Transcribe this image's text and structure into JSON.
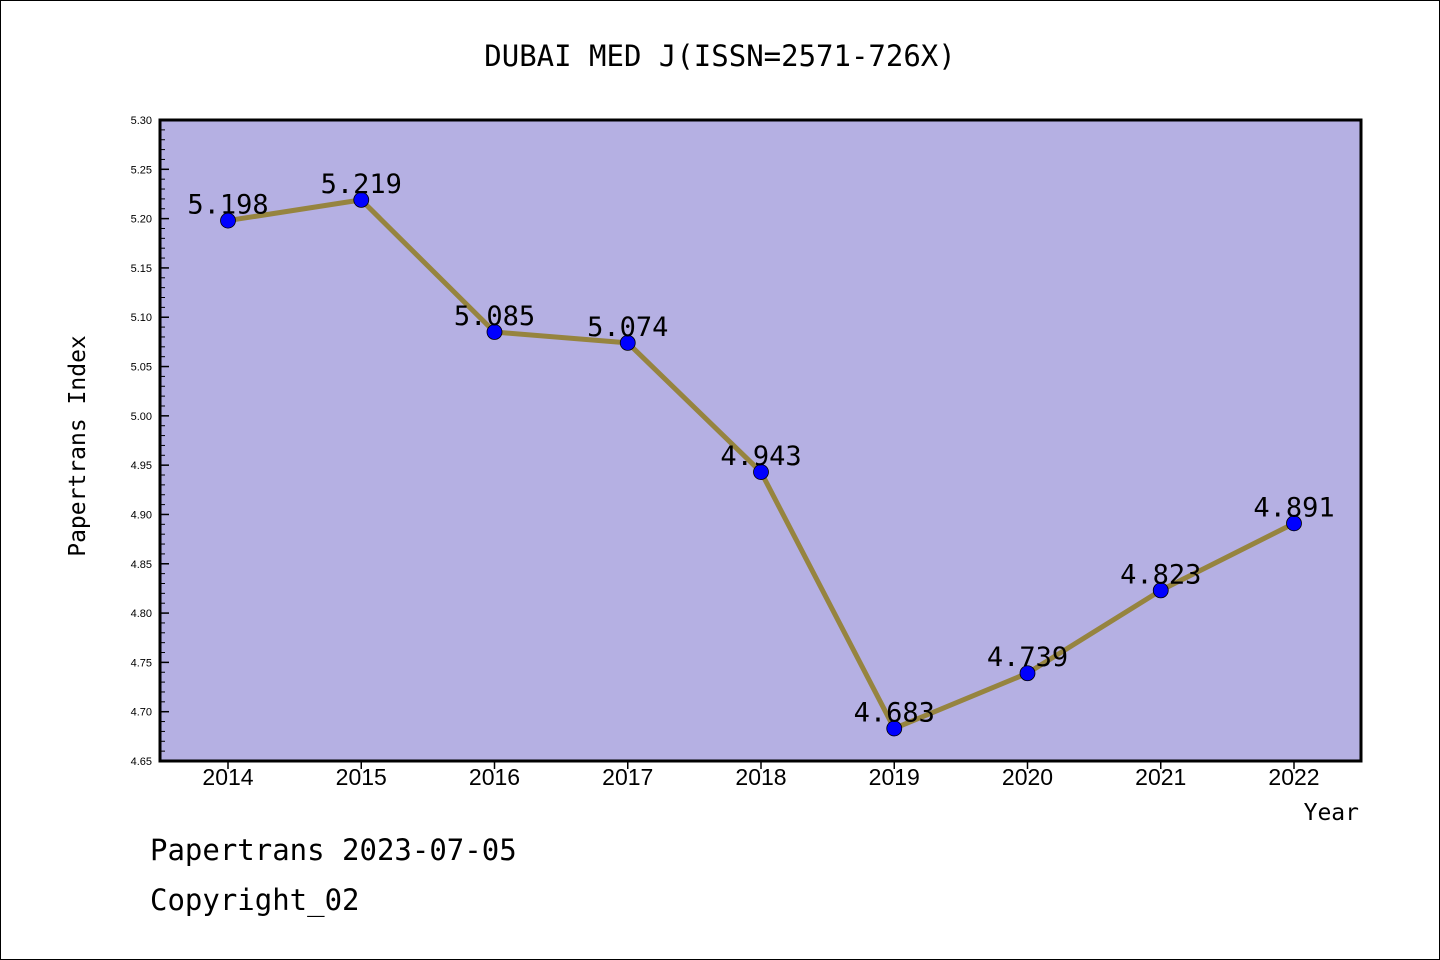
{
  "chart_data": {
    "type": "line",
    "title": "DUBAI MED J(ISSN=2571-726X)",
    "xlabel": "Year",
    "ylabel": "Papertrans Index",
    "categories": [
      "2014",
      "2015",
      "2016",
      "2017",
      "2018",
      "2019",
      "2020",
      "2021",
      "2022"
    ],
    "series": [
      {
        "values": [
          5.198,
          5.219,
          5.085,
          5.074,
          4.943,
          4.683,
          4.739,
          4.823,
          4.891
        ],
        "labels": [
          "5.198",
          "5.219",
          "5.085",
          "5.074",
          "4.943",
          "4.683",
          "4.739",
          "4.823",
          "4.891"
        ]
      }
    ],
    "ylim": [
      4.65,
      5.3
    ],
    "yticks": [
      "4.65",
      "4.70",
      "4.75",
      "4.80",
      "4.85",
      "4.90",
      "4.95",
      "5.00",
      "5.05",
      "5.10",
      "5.15",
      "5.20",
      "5.25",
      "5.30"
    ],
    "grid": false,
    "colors": {
      "plot_background": "#b5b0e3",
      "line": "#96843f",
      "marker": "#0000ff"
    }
  },
  "footer": {
    "line1": "Papertrans 2023-07-05",
    "line2": "Copyright_02"
  }
}
